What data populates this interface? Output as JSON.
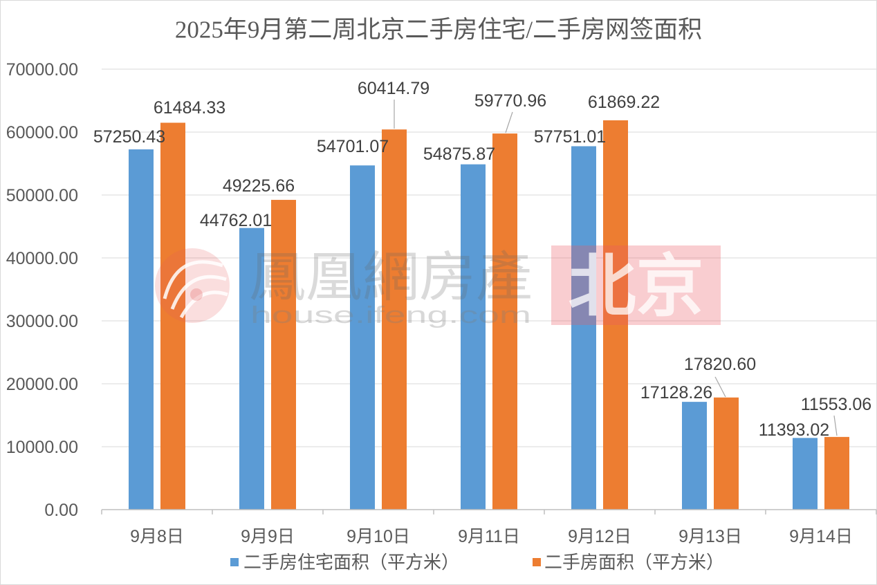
{
  "chart_data": {
    "type": "bar",
    "title": "2025年9月第二周北京二手房住宅/二手房网签面积",
    "categories": [
      "9月8日",
      "9月9日",
      "9月10日",
      "9月11日",
      "9月12日",
      "9月13日",
      "9月14日"
    ],
    "series": [
      {
        "name": "二手房住宅面积（平方米）",
        "color": "#5B9BD5",
        "values": [
          57250.43,
          44762.01,
          54701.07,
          54875.87,
          57751.01,
          17128.26,
          11393.02
        ]
      },
      {
        "name": "二手房面积（平方米）",
        "color": "#ED7D31",
        "values": [
          61484.33,
          49225.66,
          60414.79,
          59770.96,
          61869.22,
          17820.6,
          11553.06
        ]
      }
    ],
    "ylim": [
      0,
      70000
    ],
    "yticks": [
      0,
      10000,
      20000,
      30000,
      40000,
      50000,
      60000,
      70000
    ],
    "grid": true,
    "legend": "bottom",
    "data_labels": true
  },
  "watermark": {
    "brand": "鳳凰網房產",
    "site": "house.ifeng.com",
    "city": "北京"
  }
}
